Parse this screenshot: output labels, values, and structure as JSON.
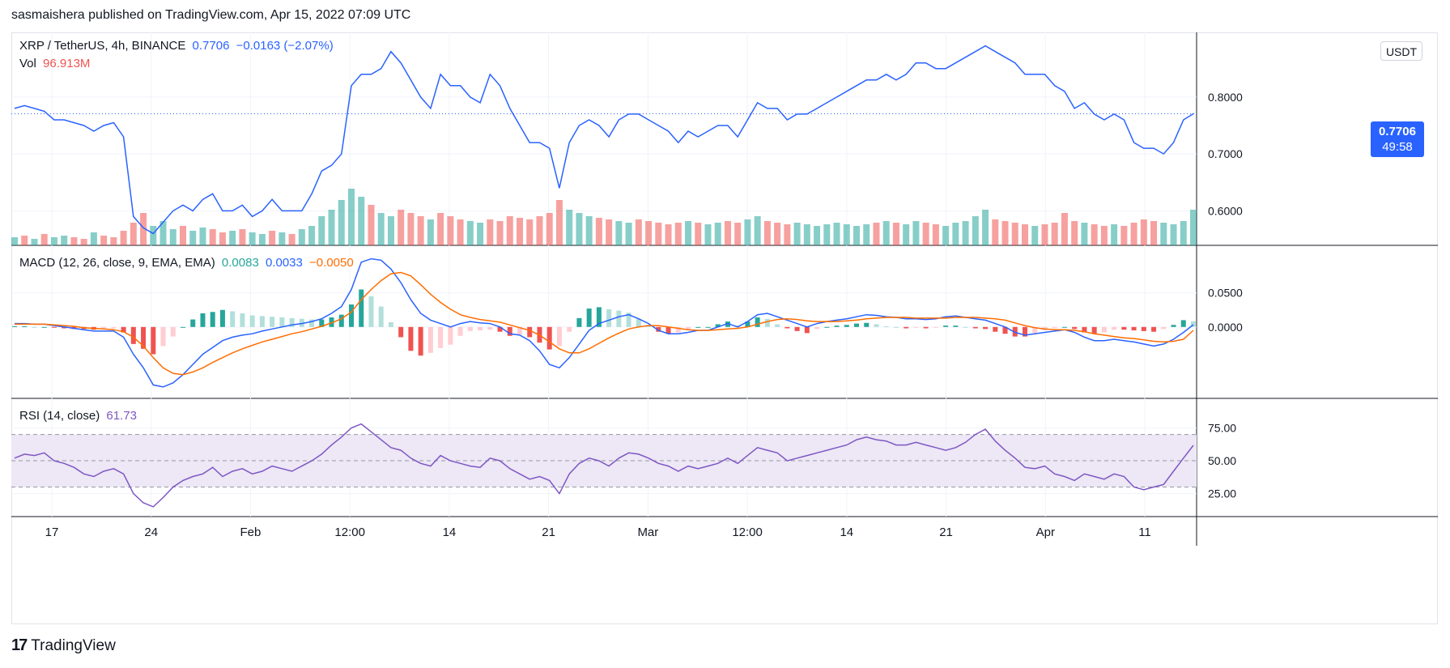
{
  "header": {
    "publisher_line": "sasmaishera published on TradingView.com, Apr 15, 2022 07:09 UTC"
  },
  "footer": {
    "brand": "TradingView",
    "logo_mark": "17"
  },
  "colors": {
    "price_line": "#2962ff",
    "up": "#26a69a",
    "down": "#ef5350",
    "macd": "#2962ff",
    "signal": "#ff6d00",
    "rsi": "#7e57c2",
    "rsi_band": "#ede7f6"
  },
  "main_legend": {
    "symbol": "XRP / TetherUS, 4h, BINANCE",
    "price": "0.7706",
    "change": "−0.0163 (−2.07%)",
    "vol_label": "Vol",
    "vol_value": "96.913M"
  },
  "macd_legend": {
    "label": "MACD (12, 26, close, 9, EMA, EMA)",
    "hist": "0.0083",
    "macd": "0.0033",
    "signal": "−0.0050"
  },
  "rsi_legend": {
    "label": "RSI (14, close)",
    "value": "61.73"
  },
  "currency_badge": "USDT",
  "price_tag": {
    "price": "0.7706",
    "countdown": "49:58"
  },
  "chart_data": [
    {
      "type": "line",
      "title": "XRP / TetherUS, 4h, BINANCE",
      "ylim": [
        0.545,
        0.908
      ],
      "y_ticks": [
        0.6,
        0.7,
        0.8
      ],
      "y_tick_labels": [
        "0.6000",
        "0.7000",
        "0.8000"
      ],
      "x_tick_labels": [
        "17",
        "24",
        "Feb",
        "12:00",
        "14",
        "21",
        "Mar",
        "12:00",
        "14",
        "21",
        "Apr",
        "11"
      ],
      "current_price": 0.7706,
      "series": [
        {
          "name": "XRP / TetherUS",
          "values": [
            0.78,
            0.785,
            0.78,
            0.775,
            0.76,
            0.76,
            0.755,
            0.75,
            0.74,
            0.75,
            0.755,
            0.73,
            0.59,
            0.57,
            0.56,
            0.58,
            0.6,
            0.61,
            0.6,
            0.62,
            0.63,
            0.6,
            0.6,
            0.61,
            0.59,
            0.6,
            0.62,
            0.6,
            0.6,
            0.6,
            0.63,
            0.67,
            0.68,
            0.7,
            0.82,
            0.84,
            0.84,
            0.85,
            0.88,
            0.86,
            0.83,
            0.8,
            0.78,
            0.84,
            0.82,
            0.82,
            0.8,
            0.79,
            0.84,
            0.82,
            0.78,
            0.75,
            0.72,
            0.72,
            0.71,
            0.64,
            0.72,
            0.75,
            0.76,
            0.75,
            0.73,
            0.76,
            0.77,
            0.77,
            0.76,
            0.75,
            0.74,
            0.72,
            0.74,
            0.73,
            0.74,
            0.75,
            0.75,
            0.73,
            0.76,
            0.79,
            0.78,
            0.78,
            0.76,
            0.77,
            0.77,
            0.78,
            0.79,
            0.8,
            0.81,
            0.82,
            0.83,
            0.83,
            0.84,
            0.83,
            0.84,
            0.86,
            0.86,
            0.85,
            0.85,
            0.86,
            0.87,
            0.88,
            0.89,
            0.88,
            0.87,
            0.86,
            0.84,
            0.84,
            0.84,
            0.82,
            0.81,
            0.78,
            0.79,
            0.77,
            0.76,
            0.77,
            0.76,
            0.72,
            0.71,
            0.71,
            0.7,
            0.72,
            0.76,
            0.7706
          ]
        }
      ]
    },
    {
      "type": "bar",
      "title": "Vol",
      "current_value": "96.913M",
      "series": [
        {
          "name": "Vol",
          "values": [
            5,
            6,
            4,
            7,
            5,
            6,
            5,
            4,
            8,
            6,
            5,
            9,
            14,
            20,
            12,
            15,
            10,
            12,
            9,
            11,
            10,
            8,
            9,
            10,
            8,
            7,
            9,
            8,
            7,
            10,
            12,
            18,
            22,
            28,
            35,
            30,
            25,
            20,
            18,
            22,
            20,
            18,
            16,
            20,
            18,
            16,
            15,
            14,
            16,
            15,
            18,
            17,
            16,
            18,
            20,
            28,
            22,
            20,
            18,
            17,
            16,
            15,
            14,
            16,
            15,
            14,
            13,
            14,
            15,
            14,
            13,
            14,
            15,
            14,
            16,
            18,
            15,
            14,
            13,
            14,
            13,
            12,
            13,
            14,
            13,
            12,
            13,
            14,
            15,
            14,
            13,
            15,
            14,
            13,
            12,
            14,
            15,
            18,
            22,
            16,
            15,
            14,
            13,
            12,
            13,
            14,
            20,
            15,
            14,
            13,
            12,
            13,
            12,
            14,
            16,
            15,
            14,
            13,
            15,
            22
          ]
        },
        {
          "name": "direction",
          "values": [
            1,
            -1,
            1,
            -1,
            1,
            1,
            -1,
            -1,
            1,
            -1,
            -1,
            -1,
            -1,
            -1,
            1,
            1,
            1,
            -1,
            1,
            1,
            -1,
            -1,
            1,
            -1,
            1,
            1,
            -1,
            1,
            -1,
            1,
            1,
            1,
            1,
            1,
            1,
            1,
            -1,
            1,
            1,
            -1,
            -1,
            -1,
            1,
            -1,
            -1,
            -1,
            1,
            1,
            -1,
            -1,
            -1,
            -1,
            -1,
            -1,
            -1,
            -1,
            1,
            1,
            1,
            -1,
            -1,
            1,
            1,
            -1,
            -1,
            -1,
            -1,
            -1,
            1,
            -1,
            1,
            1,
            -1,
            -1,
            1,
            1,
            -1,
            -1,
            -1,
            1,
            1,
            1,
            1,
            1,
            1,
            1,
            1,
            -1,
            1,
            -1,
            1,
            1,
            -1,
            -1,
            1,
            1,
            1,
            1,
            1,
            -1,
            -1,
            -1,
            -1,
            1,
            -1,
            -1,
            -1,
            -1,
            1,
            -1,
            -1,
            1,
            -1,
            -1,
            -1,
            -1,
            1,
            1,
            1,
            1
          ]
        }
      ]
    },
    {
      "type": "line",
      "title": "MACD (12, 26, close, 9, EMA, EMA)",
      "ylim": [
        -0.1,
        0.115
      ],
      "y_ticks": [
        0.0,
        0.05
      ],
      "y_tick_labels": [
        "0.0000",
        "0.0500"
      ],
      "series": [
        {
          "name": "MACD",
          "values": [
            0.005,
            0.005,
            0.004,
            0.004,
            0.002,
            0.0,
            -0.002,
            -0.004,
            -0.006,
            -0.006,
            -0.006,
            -0.015,
            -0.04,
            -0.06,
            -0.085,
            -0.088,
            -0.082,
            -0.07,
            -0.055,
            -0.04,
            -0.03,
            -0.02,
            -0.015,
            -0.012,
            -0.01,
            -0.006,
            -0.003,
            0.0,
            0.003,
            0.005,
            0.008,
            0.012,
            0.02,
            0.03,
            0.055,
            0.095,
            0.1,
            0.098,
            0.085,
            0.065,
            0.04,
            0.02,
            0.01,
            0.005,
            0.0,
            0.005,
            0.008,
            0.006,
            0.005,
            0.0,
            -0.01,
            -0.012,
            -0.02,
            -0.035,
            -0.055,
            -0.06,
            -0.045,
            -0.025,
            -0.005,
            0.005,
            0.01,
            0.015,
            0.018,
            0.012,
            0.005,
            -0.005,
            -0.01,
            -0.01,
            -0.008,
            -0.005,
            -0.005,
            0.0,
            0.005,
            0.0,
            0.008,
            0.018,
            0.02,
            0.015,
            0.01,
            0.005,
            0.0,
            0.005,
            0.008,
            0.01,
            0.012,
            0.015,
            0.018,
            0.017,
            0.015,
            0.014,
            0.012,
            0.012,
            0.011,
            0.012,
            0.015,
            0.016,
            0.014,
            0.012,
            0.01,
            0.005,
            0.0,
            -0.008,
            -0.012,
            -0.01,
            -0.008,
            -0.006,
            -0.004,
            -0.008,
            -0.015,
            -0.02,
            -0.02,
            -0.018,
            -0.02,
            -0.022,
            -0.025,
            -0.028,
            -0.025,
            -0.018,
            -0.008,
            0.0033
          ]
        },
        {
          "name": "Signal",
          "values": [
            0.004,
            0.004,
            0.004,
            0.004,
            0.003,
            0.002,
            0.001,
            -0.001,
            -0.002,
            -0.003,
            -0.004,
            -0.007,
            -0.015,
            -0.028,
            -0.045,
            -0.06,
            -0.068,
            -0.07,
            -0.066,
            -0.06,
            -0.052,
            -0.045,
            -0.038,
            -0.032,
            -0.027,
            -0.022,
            -0.018,
            -0.014,
            -0.01,
            -0.007,
            -0.003,
            0.001,
            0.006,
            0.012,
            0.022,
            0.04,
            0.055,
            0.068,
            0.078,
            0.08,
            0.075,
            0.062,
            0.048,
            0.036,
            0.026,
            0.018,
            0.014,
            0.011,
            0.009,
            0.007,
            0.003,
            -0.001,
            -0.005,
            -0.012,
            -0.022,
            -0.032,
            -0.038,
            -0.038,
            -0.032,
            -0.024,
            -0.016,
            -0.009,
            -0.003,
            0.0,
            0.002,
            0.002,
            0.0,
            -0.002,
            -0.004,
            -0.005,
            -0.005,
            -0.004,
            -0.003,
            -0.002,
            0.0,
            0.004,
            0.008,
            0.011,
            0.012,
            0.011,
            0.009,
            0.008,
            0.008,
            0.008,
            0.009,
            0.01,
            0.012,
            0.013,
            0.014,
            0.014,
            0.014,
            0.013,
            0.013,
            0.013,
            0.013,
            0.014,
            0.014,
            0.014,
            0.013,
            0.012,
            0.01,
            0.006,
            0.002,
            -0.001,
            -0.003,
            -0.004,
            -0.004,
            -0.005,
            -0.007,
            -0.01,
            -0.012,
            -0.014,
            -0.016,
            -0.017,
            -0.019,
            -0.021,
            -0.022,
            -0.021,
            -0.018,
            -0.005
          ]
        }
      ]
    },
    {
      "type": "line",
      "title": "RSI (14, close)",
      "ylim": [
        10,
        95
      ],
      "y_ticks": [
        25,
        50,
        75
      ],
      "y_tick_labels": [
        "25.00",
        "50.00",
        "75.00"
      ],
      "band": [
        30,
        70
      ],
      "series": [
        {
          "name": "RSI",
          "values": [
            52,
            55,
            54,
            56,
            50,
            48,
            45,
            40,
            38,
            42,
            44,
            40,
            25,
            18,
            15,
            22,
            30,
            35,
            38,
            40,
            45,
            38,
            42,
            44,
            40,
            42,
            46,
            44,
            42,
            46,
            50,
            55,
            62,
            68,
            75,
            78,
            72,
            66,
            60,
            58,
            52,
            48,
            46,
            54,
            50,
            48,
            46,
            45,
            52,
            50,
            44,
            40,
            36,
            38,
            35,
            25,
            40,
            48,
            52,
            50,
            46,
            52,
            56,
            55,
            52,
            48,
            46,
            42,
            46,
            44,
            46,
            48,
            52,
            48,
            54,
            60,
            58,
            56,
            50,
            52,
            54,
            56,
            58,
            60,
            62,
            66,
            68,
            66,
            65,
            62,
            62,
            64,
            62,
            60,
            58,
            60,
            64,
            70,
            74,
            65,
            58,
            52,
            45,
            44,
            46,
            40,
            38,
            35,
            40,
            38,
            36,
            40,
            38,
            30,
            28,
            30,
            32,
            42,
            52,
            61.73
          ]
        }
      ]
    }
  ]
}
